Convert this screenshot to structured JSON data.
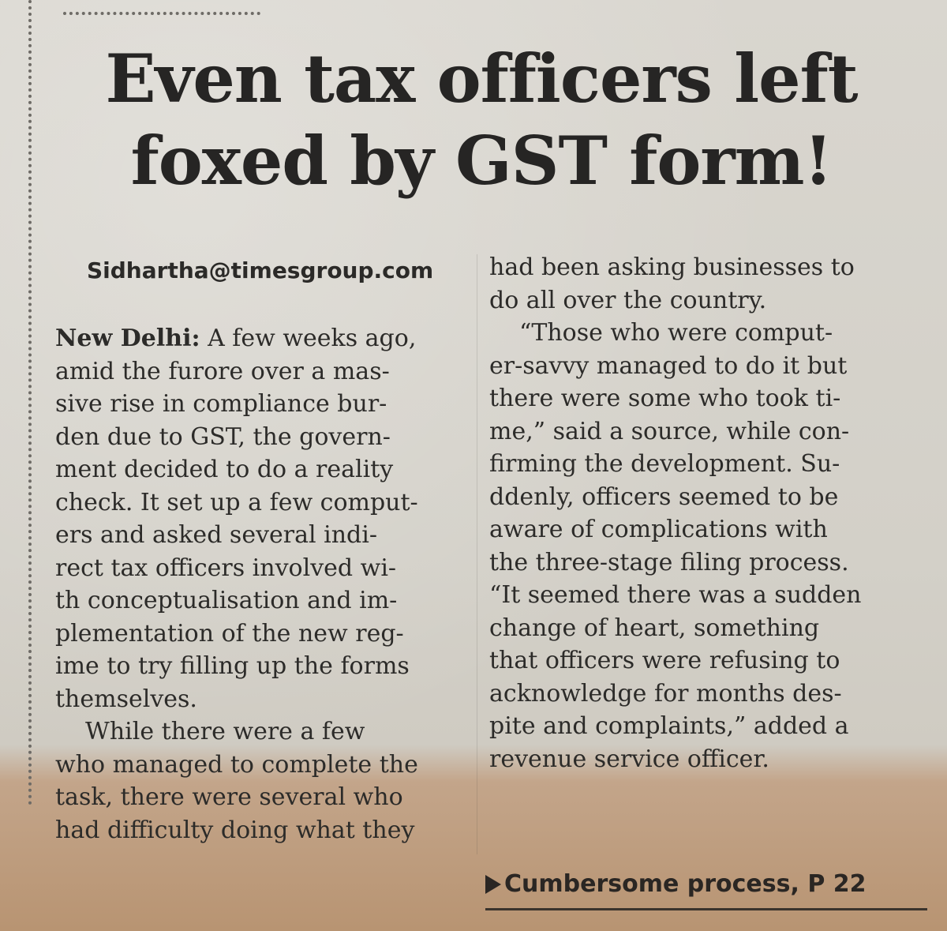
{
  "headline": {
    "line1": "Even tax officers left",
    "line2": "foxed by GST form!"
  },
  "byline": "Sidhartha@timesgroup.com",
  "left_column": {
    "dateline": "New Delhi:",
    "lines": [
      " A few weeks ago,",
      "amid the furore over a mas-",
      "sive rise in compliance bur-",
      "den due to GST, the govern-",
      "ment decided to do a reality",
      "check. It set up a few comput-",
      "ers and asked several indi-",
      "rect tax officers involved wi-",
      "th conceptualisation and im-",
      "plementation of the new reg-",
      "ime to try filling up the forms",
      "themselves.",
      "While there were a few",
      "who managed to complete the",
      "task, there were several who",
      "had difficulty doing what they"
    ]
  },
  "right_column": {
    "lines": [
      "had been asking businesses to",
      "do all over the country.",
      "“Those who were comput-",
      "er-savvy managed to do it but",
      "there were some who took ti-",
      "me,” said a source, while con-",
      "firming the development. Su-",
      "ddenly, officers seemed to be",
      "aware of complications with",
      "the three-stage filing process.",
      "“It seemed there was a sudden",
      "change of heart, something",
      "that officers were refusing to",
      "acknowledge for months des-",
      "pite and complaints,” added a",
      "revenue service officer."
    ]
  },
  "jump": "Cumbersome process, P 22",
  "icons": {
    "jump_arrow": "right-triangle-icon"
  }
}
